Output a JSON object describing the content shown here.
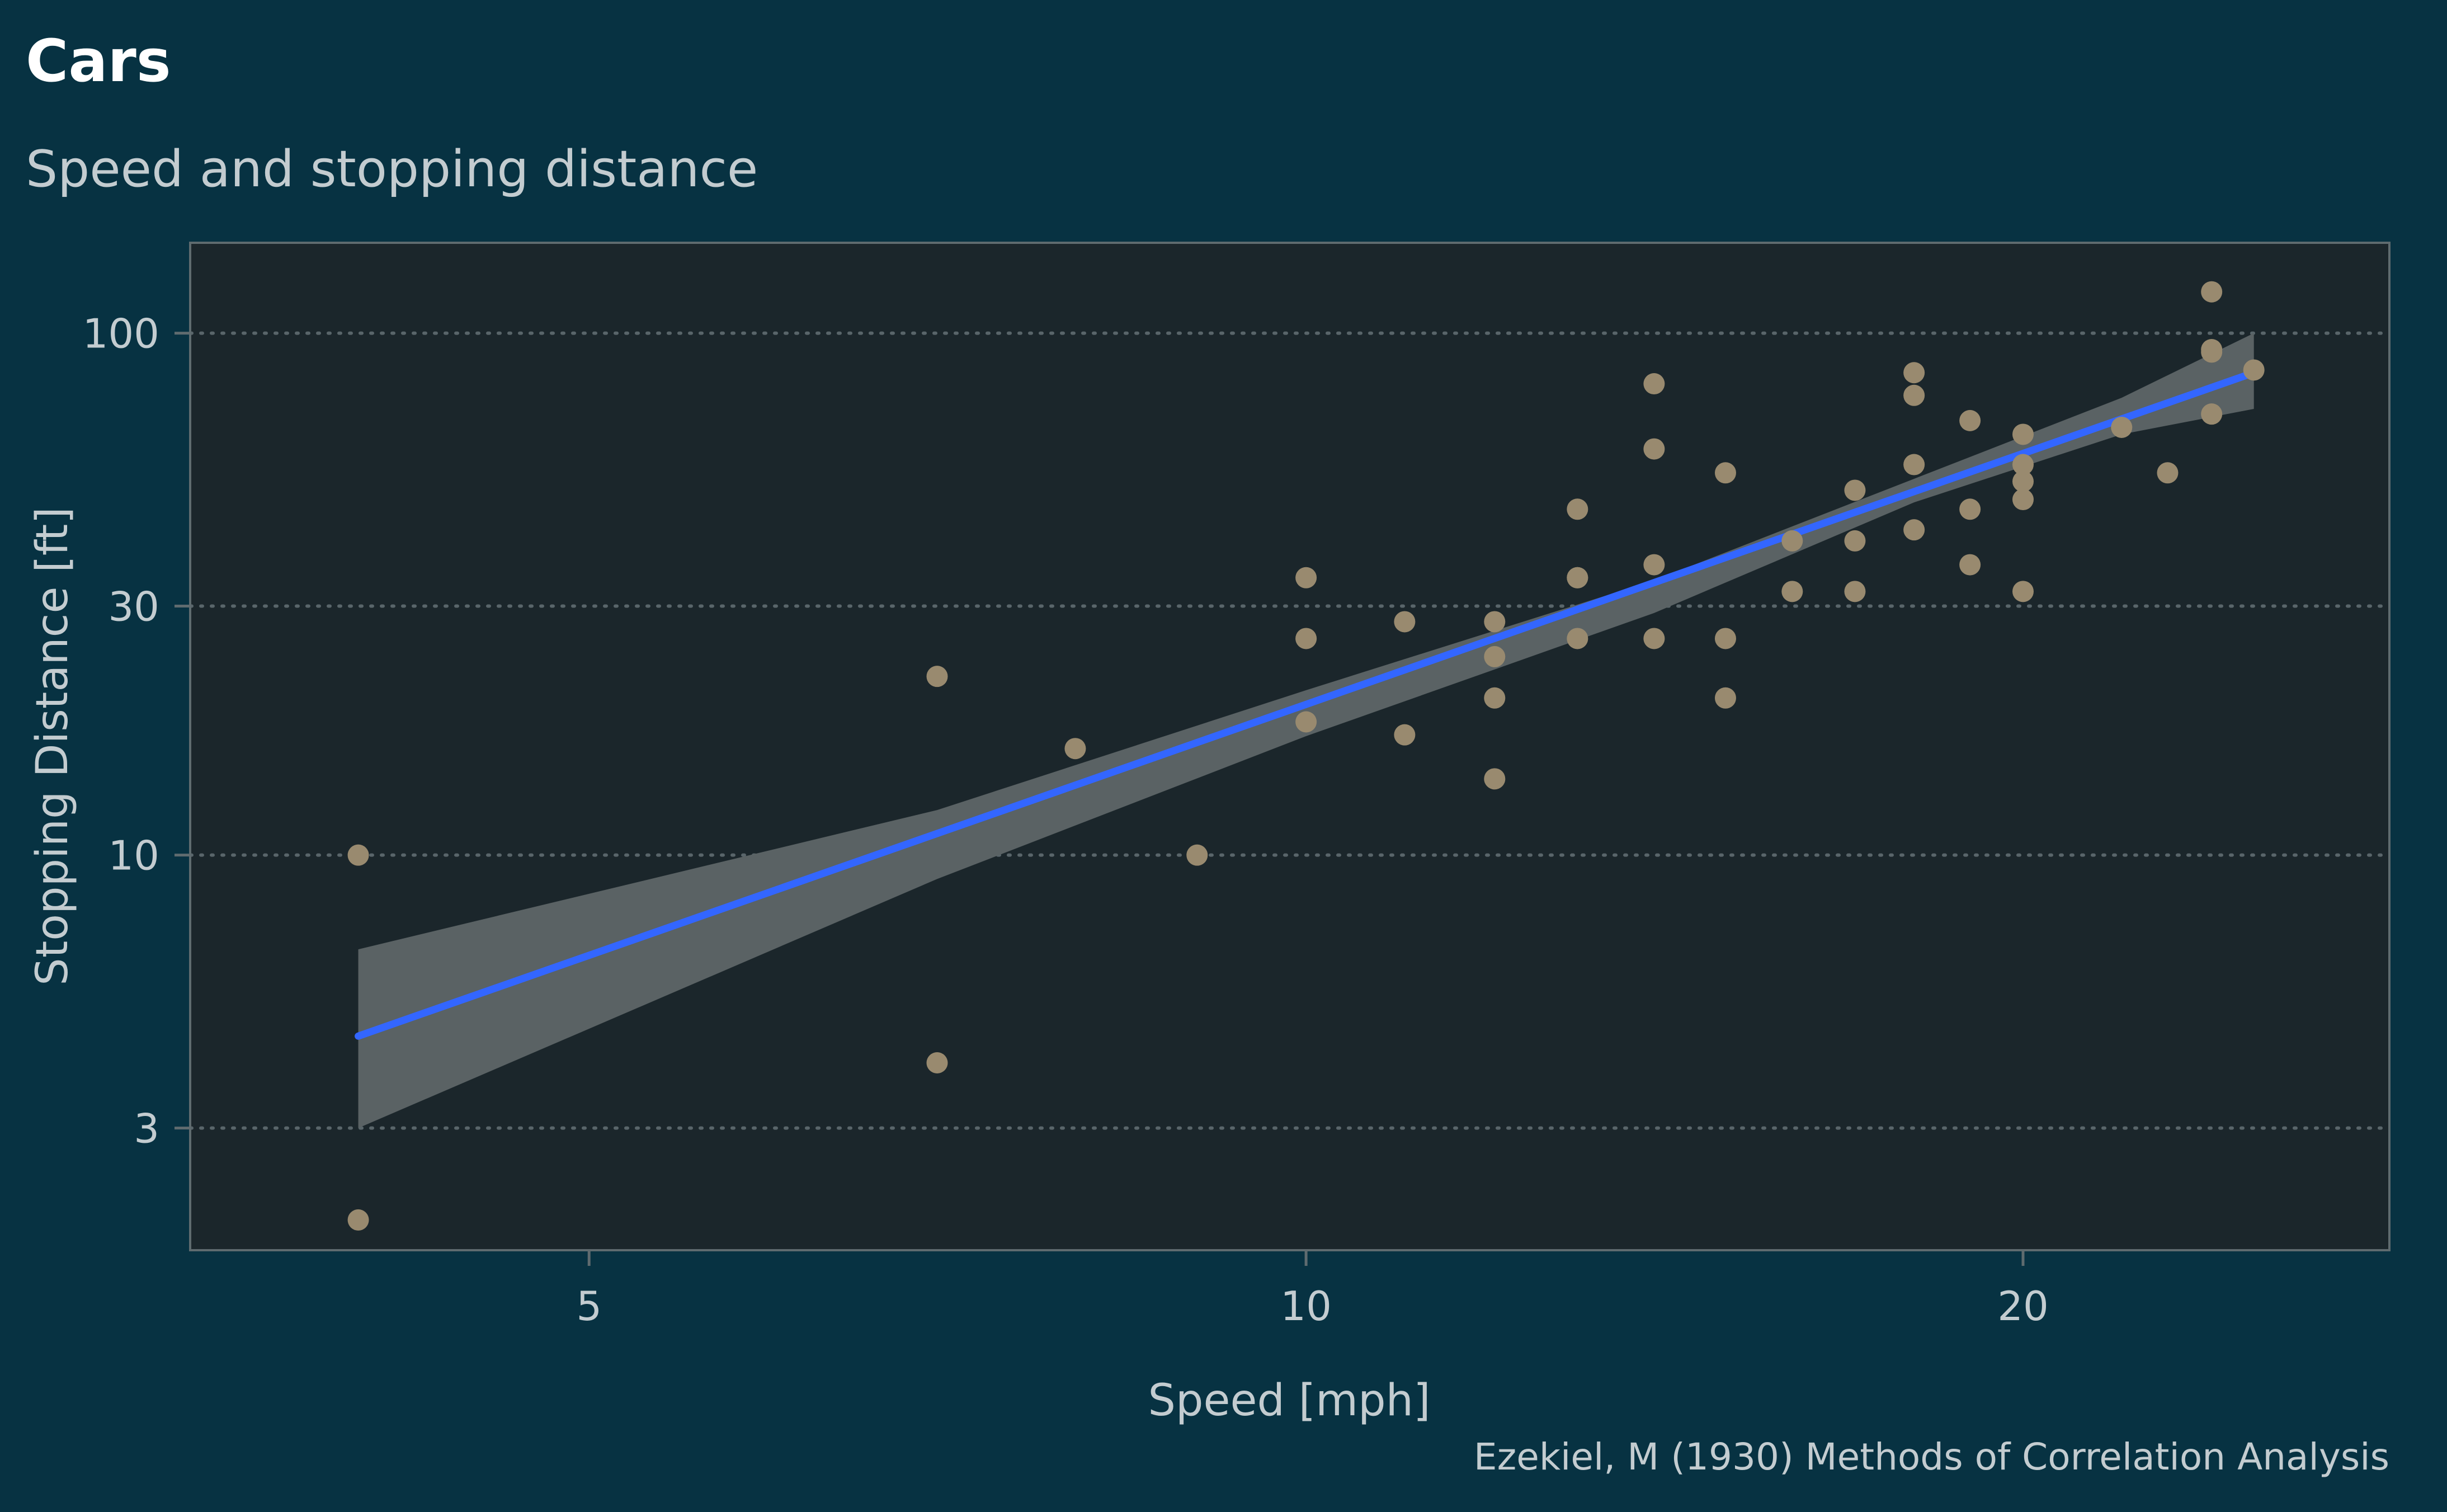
{
  "colors": {
    "background": "#073242",
    "panel": "#1b262b",
    "panel_border": "#5f6b6f",
    "grid": "#59656a",
    "points": "#998a6f",
    "fit_line": "#3366ff",
    "confidence_band": "#5a6264",
    "text": "#c3ccd0"
  },
  "chart_data": {
    "type": "scatter",
    "title": "Cars",
    "subtitle": "Speed and stopping distance",
    "caption": "Ezekiel, M (1930) Methods of Correlation Analysis",
    "xlabel": "Speed [mph]",
    "ylabel": "Stopping Distance [ft]",
    "x_scale": "log",
    "y_scale": "log",
    "xlim": [
      3.4,
      28.5
    ],
    "ylim": [
      1.75,
      149
    ],
    "x_ticks": [
      5,
      10,
      20
    ],
    "x_tick_labels": [
      "5",
      "10",
      "20"
    ],
    "y_ticks": [
      3,
      10,
      30,
      100
    ],
    "y_tick_labels": [
      "3",
      "10",
      "30",
      "100"
    ],
    "grid": "horizontal dotted",
    "points": [
      {
        "x": 4,
        "y": 2
      },
      {
        "x": 4,
        "y": 10
      },
      {
        "x": 7,
        "y": 4
      },
      {
        "x": 7,
        "y": 22
      },
      {
        "x": 8,
        "y": 16
      },
      {
        "x": 9,
        "y": 10
      },
      {
        "x": 10,
        "y": 18
      },
      {
        "x": 10,
        "y": 26
      },
      {
        "x": 10,
        "y": 34
      },
      {
        "x": 11,
        "y": 17
      },
      {
        "x": 11,
        "y": 28
      },
      {
        "x": 12,
        "y": 14
      },
      {
        "x": 12,
        "y": 20
      },
      {
        "x": 12,
        "y": 24
      },
      {
        "x": 12,
        "y": 28
      },
      {
        "x": 13,
        "y": 26
      },
      {
        "x": 13,
        "y": 34
      },
      {
        "x": 13,
        "y": 34
      },
      {
        "x": 13,
        "y": 46
      },
      {
        "x": 14,
        "y": 26
      },
      {
        "x": 14,
        "y": 36
      },
      {
        "x": 14,
        "y": 60
      },
      {
        "x": 14,
        "y": 80
      },
      {
        "x": 15,
        "y": 20
      },
      {
        "x": 15,
        "y": 26
      },
      {
        "x": 15,
        "y": 54
      },
      {
        "x": 16,
        "y": 32
      },
      {
        "x": 16,
        "y": 40
      },
      {
        "x": 17,
        "y": 32
      },
      {
        "x": 17,
        "y": 40
      },
      {
        "x": 17,
        "y": 50
      },
      {
        "x": 18,
        "y": 42
      },
      {
        "x": 18,
        "y": 56
      },
      {
        "x": 18,
        "y": 76
      },
      {
        "x": 18,
        "y": 84
      },
      {
        "x": 19,
        "y": 36
      },
      {
        "x": 19,
        "y": 46
      },
      {
        "x": 19,
        "y": 68
      },
      {
        "x": 20,
        "y": 32
      },
      {
        "x": 20,
        "y": 48
      },
      {
        "x": 20,
        "y": 52
      },
      {
        "x": 20,
        "y": 56
      },
      {
        "x": 20,
        "y": 64
      },
      {
        "x": 22,
        "y": 66
      },
      {
        "x": 23,
        "y": 54
      },
      {
        "x": 24,
        "y": 70
      },
      {
        "x": 24,
        "y": 92
      },
      {
        "x": 24,
        "y": 93
      },
      {
        "x": 24,
        "y": 120
      },
      {
        "x": 25,
        "y": 85
      }
    ],
    "fit_line": [
      {
        "x": 4,
        "y": 4.5
      },
      {
        "x": 25,
        "y": 84
      }
    ],
    "confidence_band": [
      {
        "x": 4,
        "lower": 3.0,
        "upper": 6.6
      },
      {
        "x": 7,
        "lower": 9.0,
        "upper": 12.2
      },
      {
        "x": 10,
        "lower": 16.9,
        "upper": 20.7
      },
      {
        "x": 14,
        "lower": 29.1,
        "upper": 33.6
      },
      {
        "x": 18,
        "lower": 47.4,
        "upper": 52.6
      },
      {
        "x": 22,
        "lower": 64.0,
        "upper": 75.2
      },
      {
        "x": 25,
        "lower": 71.6,
        "upper": 100.0
      }
    ]
  }
}
